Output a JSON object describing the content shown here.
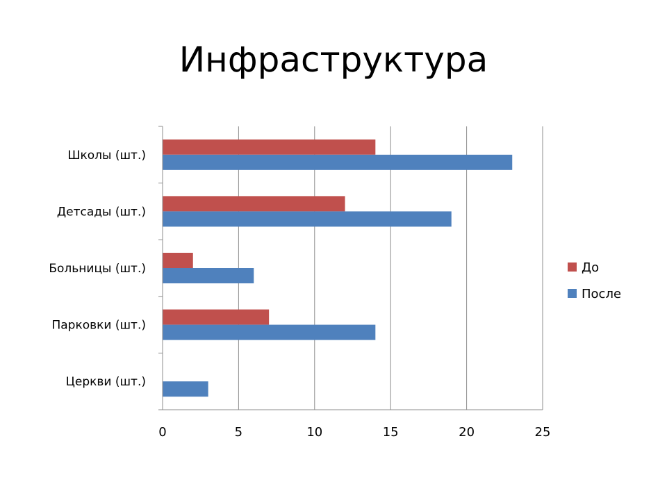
{
  "title": "Инфраструктура",
  "chart_data": {
    "type": "bar",
    "orientation": "horizontal",
    "categories": [
      "Школы (шт.)",
      "Детсады (шт.)",
      "Больницы (шт.)",
      "Парковки (шт.)",
      "Церкви (шт.)"
    ],
    "series": [
      {
        "name": "До",
        "values": [
          14,
          12,
          2,
          7,
          0
        ],
        "color": "#C0504D"
      },
      {
        "name": "После",
        "values": [
          23,
          19,
          6,
          14,
          3
        ],
        "color": "#4F81BD"
      }
    ],
    "xlim": [
      0,
      25
    ],
    "xticks": [
      0,
      5,
      10,
      15,
      20,
      25
    ],
    "grid": true,
    "legend_position": "right"
  }
}
